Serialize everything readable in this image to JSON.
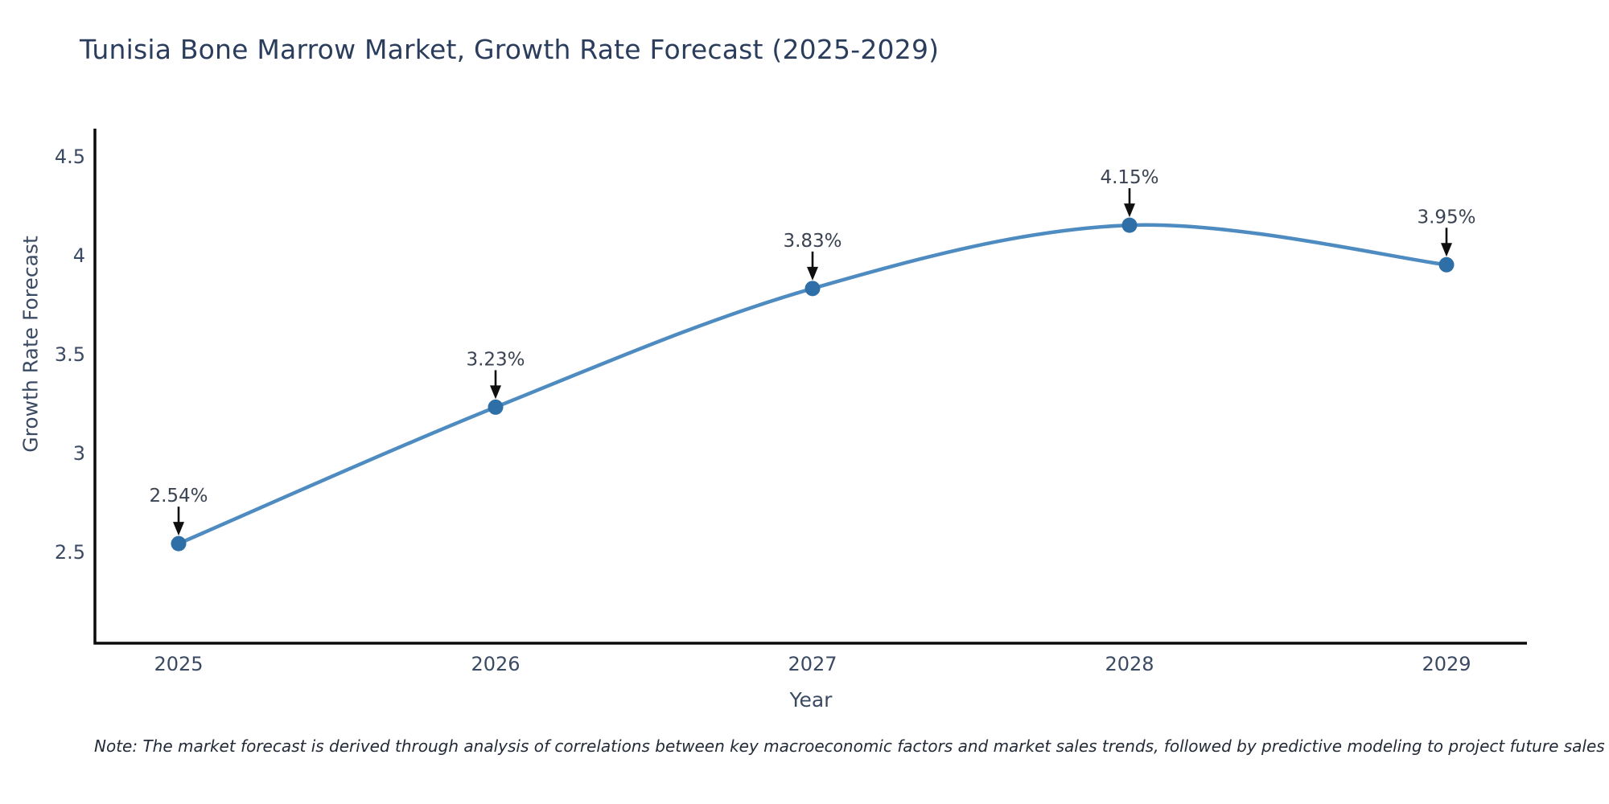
{
  "note": "Note: The market forecast is derived through analysis of correlations between key macroeconomic factors and market sales trends, followed by predictive modeling to project future sales",
  "chart_data": {
    "type": "line",
    "title": "Tunisia Bone Marrow Market, Growth Rate Forecast (2025-2029)",
    "xlabel": "Year",
    "ylabel": "Growth Rate Forecast",
    "categories": [
      "2025",
      "2026",
      "2027",
      "2028",
      "2029"
    ],
    "values": [
      2.54,
      3.23,
      3.83,
      4.15,
      3.95
    ],
    "point_labels": [
      "2.54%",
      "3.23%",
      "3.83%",
      "4.15%",
      "3.95%"
    ],
    "y_tick_labels": [
      "2.5",
      "3",
      "3.5",
      "4",
      "4.5"
    ],
    "y_tick_values": [
      2.5,
      3.0,
      3.5,
      4.0,
      4.5
    ],
    "ylim": [
      2.04,
      4.64
    ],
    "grid": false,
    "legend_position": "none",
    "line_style": "smooth-spline-with-markers",
    "annotation_style": "value-label-with-down-arrow",
    "colors": {
      "line": "#4e8bc0",
      "marker": "#2f6fa7",
      "axis": "#0a0a0a",
      "arrow": "#0f0f0f",
      "title_text": "#2b3d5c",
      "tick_text": "#3b4a63",
      "annotation_text": "#3a4352",
      "note_text": "#232a38",
      "background": "#ffffff"
    }
  }
}
